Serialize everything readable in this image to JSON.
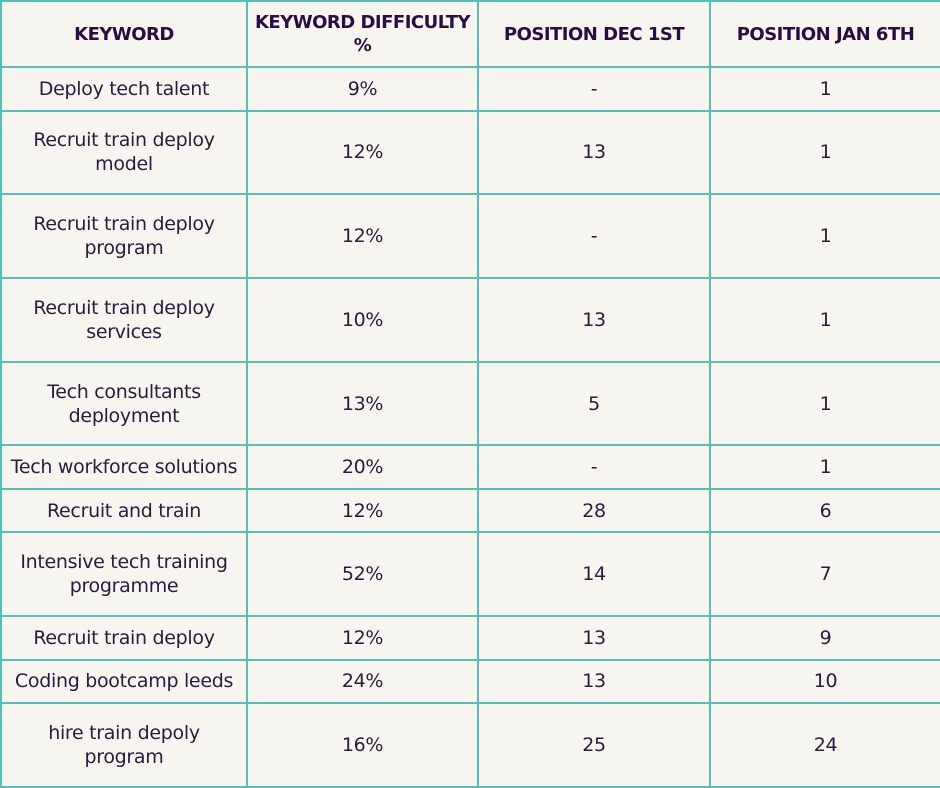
{
  "table": {
    "header": [
      "KEYWORD",
      "KEYWORD DIFFICULTY %",
      "POSITION DEC 1ST",
      "POSITION JAN 6TH"
    ],
    "rows": [
      [
        "Deploy tech talent",
        "9%",
        "-",
        "1"
      ],
      [
        "Recruit train deploy model",
        "12%",
        "13",
        "1"
      ],
      [
        "Recruit train deploy program",
        "12%",
        "-",
        "1"
      ],
      [
        "Recruit train deploy services",
        "10%",
        "13",
        "1"
      ],
      [
        "Tech consultants deployment",
        "13%",
        "5",
        "1"
      ],
      [
        "Tech workforce solutions",
        "20%",
        "-",
        "1"
      ],
      [
        "Recruit and train",
        "12%",
        "28",
        "6"
      ],
      [
        "Intensive tech training programme",
        "52%",
        "14",
        "7"
      ],
      [
        "Recruit train deploy",
        "12%",
        "13",
        "9"
      ],
      [
        "Coding bootcamp leeds",
        "24%",
        "13",
        "10"
      ],
      [
        "hire train depoly program",
        "16%",
        "25",
        "24"
      ]
    ]
  }
}
